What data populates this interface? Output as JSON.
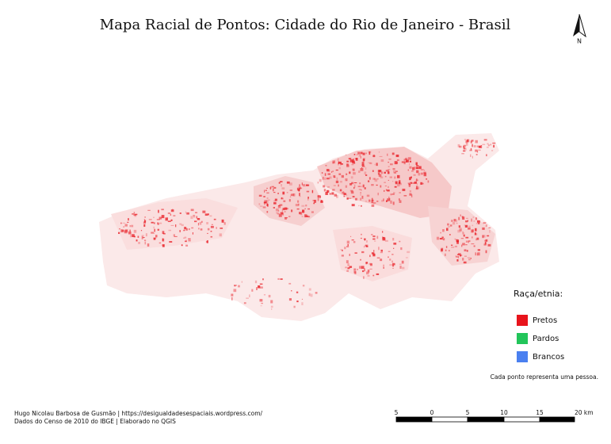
{
  "title": "Mapa Racial de Pontos: Cidade do Rio de Janeiro - Brasil",
  "north": "N",
  "legend": {
    "title": "Raça/etnia:",
    "items": [
      {
        "label": "Pretos",
        "color": "#e8141c"
      },
      {
        "label": "Pardos",
        "color": "#22c55a"
      },
      {
        "label": "Brancos",
        "color": "#4a80f0"
      }
    ]
  },
  "note": "Cada ponto representa uma pessoa.",
  "credits": [
    "Hugo Nicolau Barbosa de Gusmão | https://desigualdadesespaciais.wordpress.com/",
    "Dados do Censo de 2010 do IBGE | Elaborado no QGIS"
  ],
  "scale_bar": {
    "labels": [
      "5",
      "0",
      "5",
      "10",
      "15",
      "20 km"
    ]
  }
}
